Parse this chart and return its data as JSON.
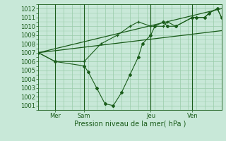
{
  "background_color": "#c8e8d8",
  "grid_color": "#99ccaa",
  "line_color": "#1a5c1a",
  "xlim": [
    0,
    22
  ],
  "ylim": [
    1000.5,
    1012.5
  ],
  "yticks": [
    1001,
    1002,
    1003,
    1004,
    1005,
    1006,
    1007,
    1008,
    1009,
    1010,
    1011,
    1012
  ],
  "xlabel": "Pression niveau de la mer( hPa )",
  "day_ticks": [
    {
      "x": 2.0,
      "label": "Mer"
    },
    {
      "x": 5.5,
      "label": "Sam"
    },
    {
      "x": 13.5,
      "label": "Jeu"
    },
    {
      "x": 18.5,
      "label": "Ven"
    }
  ],
  "day_lines": [
    2.0,
    5.5,
    13.5,
    18.5
  ],
  "series1_x": [
    0,
    2,
    5.5,
    7.5,
    9.5,
    11,
    12,
    13.5,
    14,
    15,
    15.5,
    16.5,
    18.5,
    19,
    20,
    20.5,
    21.5,
    22
  ],
  "series1_y": [
    1007,
    1006,
    1006,
    1008,
    1009,
    1010,
    1010.5,
    1010,
    1010,
    1010,
    1010.5,
    1010,
    1011,
    1011,
    1011,
    1011.5,
    1012,
    1011
  ],
  "series2_x": [
    0,
    2,
    5.5,
    6,
    7,
    8,
    9,
    10,
    11,
    12,
    12.5,
    13.5,
    14,
    15,
    15.5,
    16.5,
    18.5,
    19,
    20,
    20.5,
    21.5,
    22
  ],
  "series2_y": [
    1007,
    1006,
    1005.5,
    1004.8,
    1003,
    1001.2,
    1001,
    1002.5,
    1004.5,
    1006.5,
    1008,
    1009,
    1010,
    1010.5,
    1010,
    1010,
    1011,
    1011,
    1011,
    1011.5,
    1012,
    1011
  ],
  "series3_x": [
    0,
    22
  ],
  "series3_y": [
    1007,
    1009.5
  ],
  "series4_x": [
    0,
    22
  ],
  "series4_y": [
    1007,
    1012
  ]
}
